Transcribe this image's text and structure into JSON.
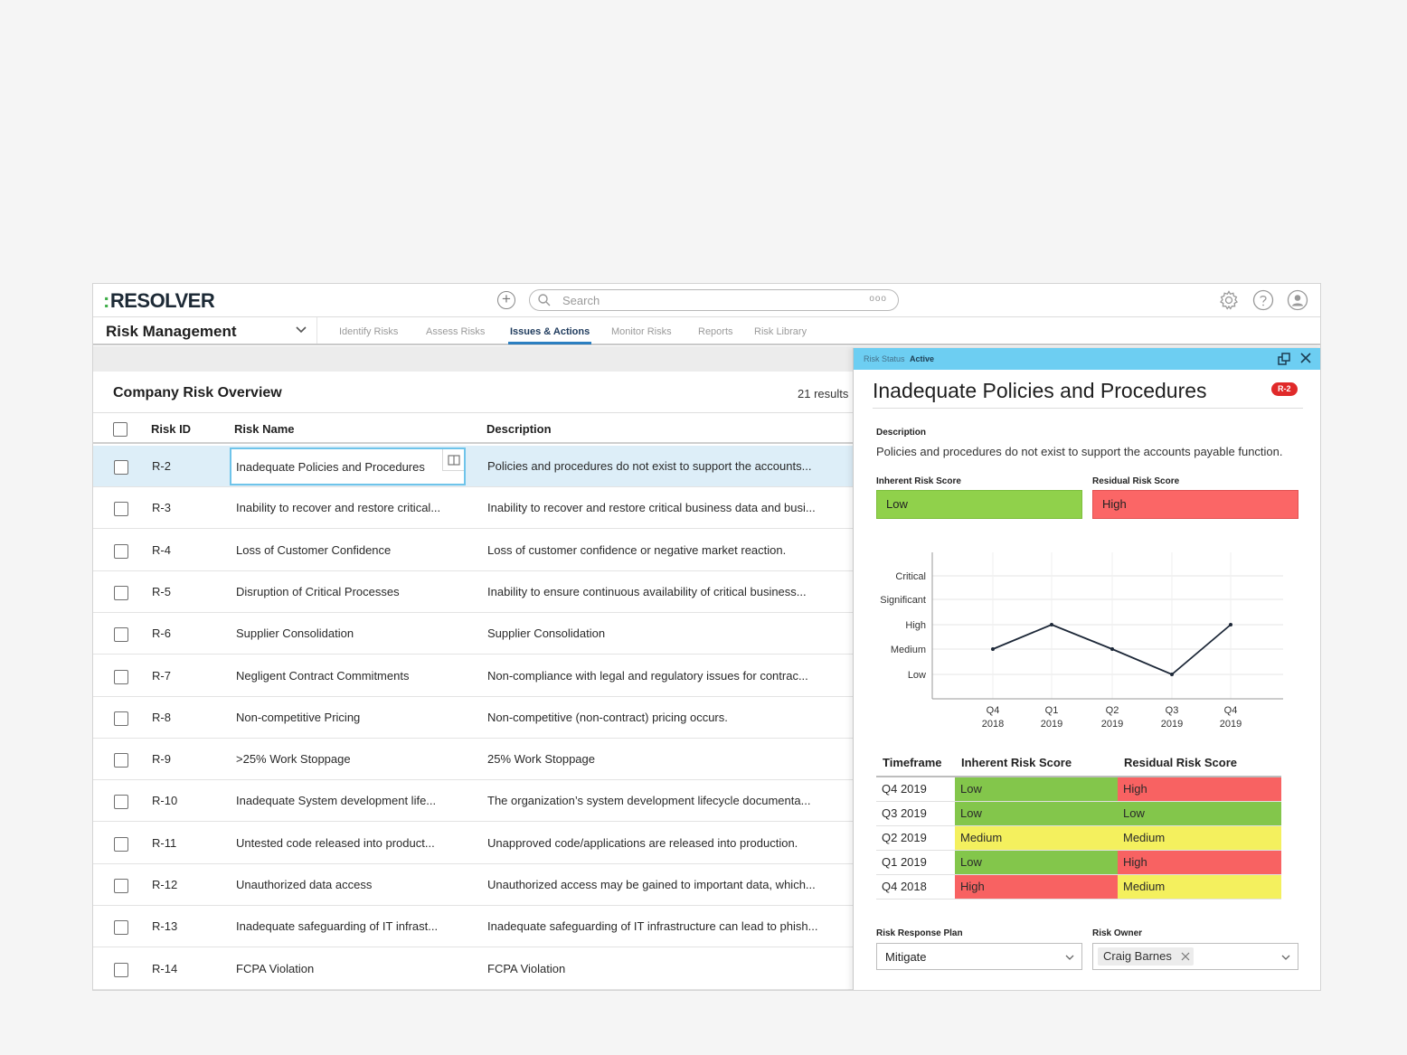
{
  "app": {
    "logo": "RESOLVER",
    "logo_prefix": ":",
    "search_placeholder": "Search",
    "search_more": "ooo"
  },
  "nav": {
    "module": "Risk Management",
    "tabs": [
      "Identify Risks",
      "Assess Risks",
      "Issues & Actions",
      "Monitor Risks",
      "Reports",
      "Risk Library"
    ],
    "active_tab": "Issues & Actions"
  },
  "list": {
    "title": "Company Risk Overview",
    "results": "21 results",
    "columns": [
      "Risk ID",
      "Risk Name",
      "Description"
    ],
    "rows": [
      {
        "id": "R-2",
        "name": "Inadequate Policies and Procedures",
        "desc": "Policies and procedures do not exist to support the accounts..."
      },
      {
        "id": "R-3",
        "name": "Inability to recover and restore critical...",
        "desc": "Inability to recover and restore critical business data and busi..."
      },
      {
        "id": "R-4",
        "name": "Loss of Customer Confidence",
        "desc": "Loss of customer confidence or negative market reaction."
      },
      {
        "id": "R-5",
        "name": "Disruption of Critical Processes",
        "desc": "Inability to ensure continuous availability of critical business..."
      },
      {
        "id": "R-6",
        "name": "Supplier Consolidation",
        "desc": "Supplier Consolidation"
      },
      {
        "id": "R-7",
        "name": "Negligent Contract Commitments",
        "desc": "Non-compliance with legal and regulatory issues for contrac..."
      },
      {
        "id": "R-8",
        "name": "Non-competitive Pricing",
        "desc": "Non-competitive (non-contract) pricing occurs."
      },
      {
        "id": "R-9",
        "name": ">25% Work Stoppage",
        "desc": "25% Work Stoppage"
      },
      {
        "id": "R-10",
        "name": "Inadequate System development life...",
        "desc": "The organization’s system development lifecycle documenta..."
      },
      {
        "id": "R-11",
        "name": "Untested code released into product...",
        "desc": "Unapproved code/applications are released into production."
      },
      {
        "id": "R-12",
        "name": "Unauthorized data access",
        "desc": "Unauthorized access may be gained to important data, which..."
      },
      {
        "id": "R-13",
        "name": "Inadequate safeguarding of IT infrast...",
        "desc": "Inadequate safeguarding of IT infrastructure can lead to phish..."
      },
      {
        "id": "R-14",
        "name": "FCPA Violation",
        "desc": "FCPA Violation"
      }
    ]
  },
  "panel": {
    "status_label": "Risk Status",
    "status_value": "Active",
    "title": "Inadequate Policies and Procedures",
    "badge": "R-2",
    "description_label": "Description",
    "description": "Policies and procedures do not exist to support the accounts payable function.",
    "inherent_label": "Inherent Risk Score",
    "inherent_value": "Low",
    "residual_label": "Residual Risk Score",
    "residual_value": "High",
    "history": {
      "columns": [
        "Timeframe",
        "Inherent Risk Score",
        "Residual Risk Score"
      ],
      "rows": [
        {
          "timeframe": "Q4 2019",
          "inherent": "Low",
          "residual": "High"
        },
        {
          "timeframe": "Q3 2019",
          "inherent": "Low",
          "residual": "Low"
        },
        {
          "timeframe": "Q2 2019",
          "inherent": "Medium",
          "residual": "Medium"
        },
        {
          "timeframe": "Q1 2019",
          "inherent": "Low",
          "residual": "High"
        },
        {
          "timeframe": "Q4 2018",
          "inherent": "High",
          "residual": "Medium"
        }
      ]
    },
    "response_label": "Risk Response Plan",
    "response_value": "Mitigate",
    "owner_label": "Risk Owner",
    "owner_value": "Craig Barnes"
  },
  "chart_data": {
    "type": "line",
    "levels": [
      "Low",
      "Medium",
      "High",
      "Significant",
      "Critical"
    ],
    "x": [
      [
        "Q4",
        "2018"
      ],
      [
        "Q1",
        "2019"
      ],
      [
        "Q2",
        "2019"
      ],
      [
        "Q3",
        "2019"
      ],
      [
        "Q4",
        "2019"
      ]
    ],
    "values": [
      "Medium",
      "High",
      "Medium",
      "Low",
      "High"
    ],
    "grid": true
  },
  "colors": {
    "accent": "#2b7fc1",
    "panel_header": "#6dcef2",
    "low": "#90d14b",
    "medium": "#f4f05e",
    "high": "#fb6666",
    "badge": "#e02a2a"
  }
}
